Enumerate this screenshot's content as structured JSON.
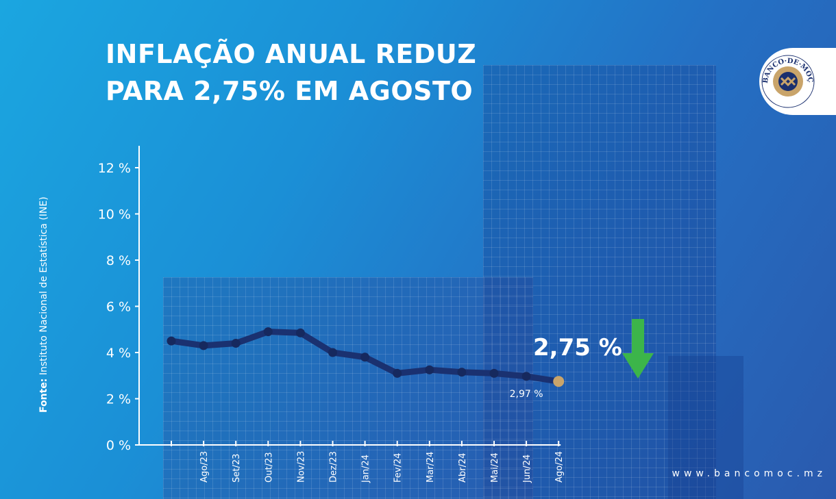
{
  "title_lines": [
    "INFLAÇÃO ANUAL REDUZ",
    "PARA 2,75% EM AGOSTO"
  ],
  "logo": {
    "text": "BANCO DE MOÇAMBIQUE"
  },
  "source": {
    "label": "Fonte:",
    "text": "Instituto Nacional de Estatística (INE)"
  },
  "website": "www.bancomoc.mz",
  "highlight": {
    "value": "2,75 %",
    "trend": "down",
    "arrow_color": "#3cb54a"
  },
  "colors": {
    "line": "#1a3170",
    "point": "#16295e",
    "last_point": "#c9a46a"
  },
  "chart_data": {
    "type": "line",
    "categories": [
      "",
      "Ago/23",
      "Set/23",
      "Out/23",
      "Nov/23",
      "Dez/23",
      "Jan/24",
      "Fev/24",
      "Mar/24",
      "Abr/24",
      "Mai/24",
      "Jun/24",
      "Ago/24"
    ],
    "values": [
      4.5,
      4.3,
      4.4,
      4.9,
      4.85,
      4.0,
      3.8,
      3.1,
      3.25,
      3.15,
      3.1,
      2.97,
      2.75
    ],
    "yticks": [
      0,
      2,
      4,
      6,
      8,
      10,
      12
    ],
    "ytick_labels": [
      "0 %",
      "2 %",
      "4 %",
      "6 %",
      "8 %",
      "10 %",
      "12 %"
    ],
    "ylim": [
      0,
      12.8
    ],
    "data_labels": [
      {
        "index": 11,
        "text": "2,97 %"
      }
    ],
    "grid": false
  }
}
